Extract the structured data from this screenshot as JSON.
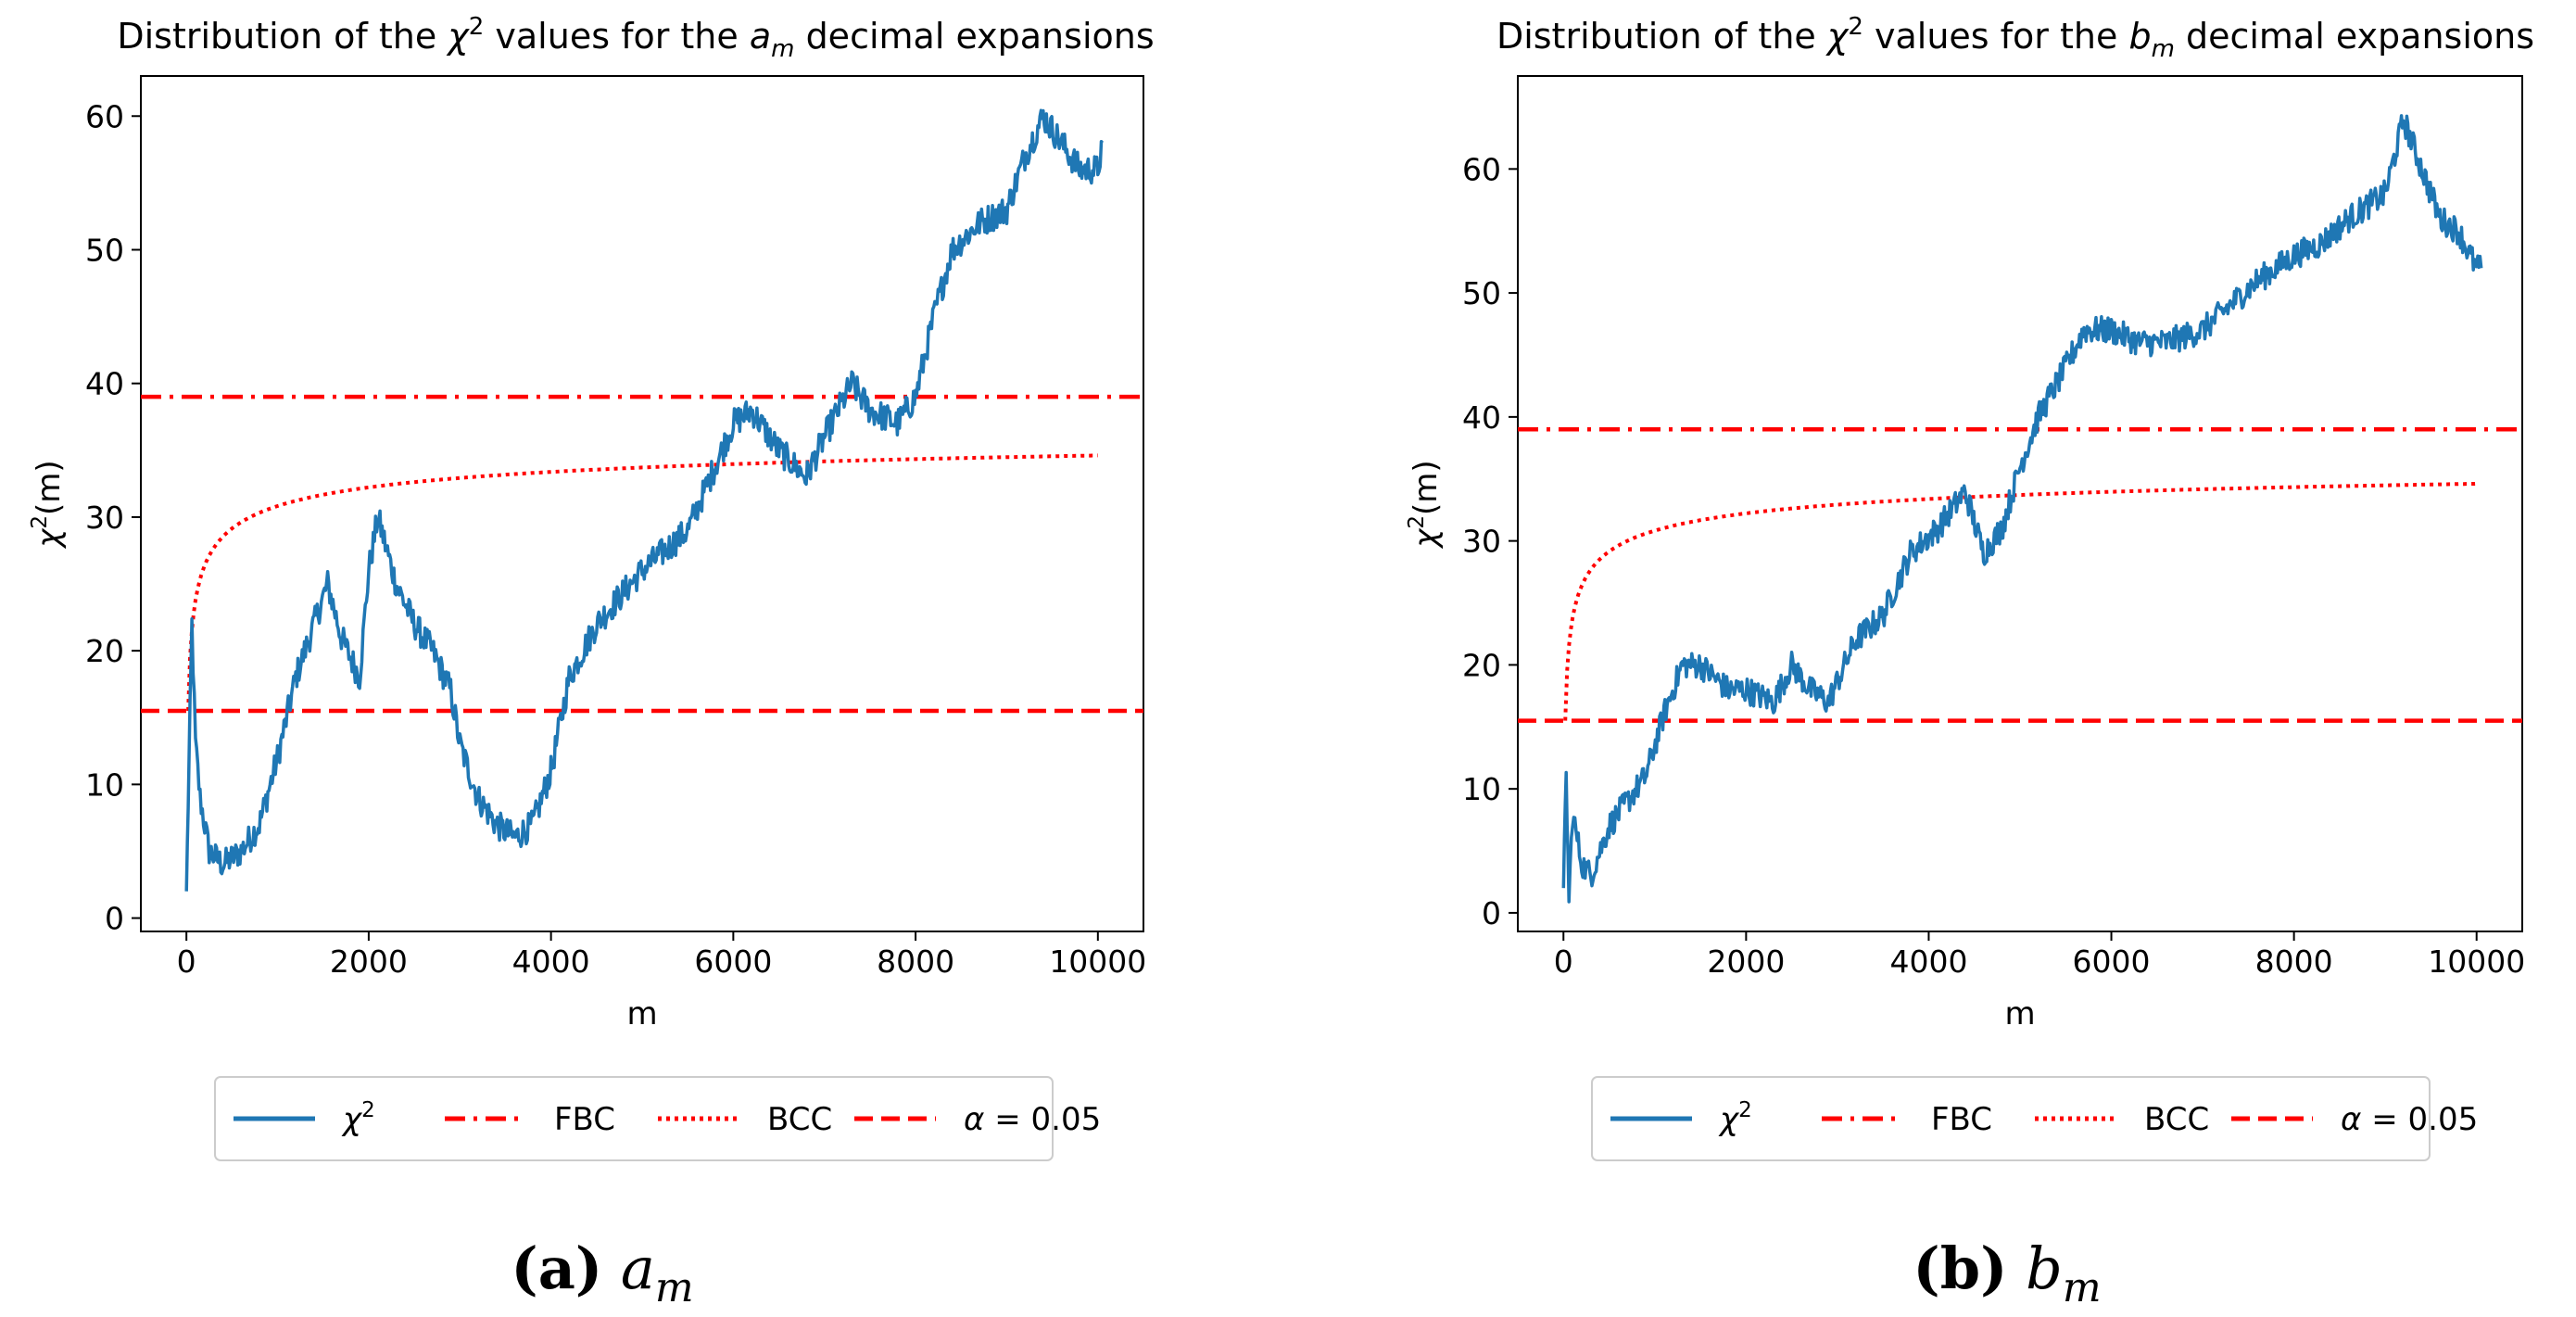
{
  "chart_data": [
    {
      "type": "line",
      "title": "Distribution of the χ² values for the a_m decimal expansions",
      "title_parts": {
        "prefix": "Distribution of the ",
        "chi": "χ",
        "sup": "2",
        "middle": " values for the ",
        "var": "a",
        "sub": "m",
        "suffix": " decimal expansions"
      },
      "xlabel": "m",
      "ylabel": "χ²(m)",
      "ylabel_parts": {
        "chi": "χ",
        "sup": "2",
        "rest": "(m)"
      },
      "xlim": [
        -500,
        10500
      ],
      "ylim": [
        -1,
        63
      ],
      "xticks": [
        0,
        2000,
        4000,
        6000,
        8000,
        10000
      ],
      "yticks": [
        0,
        10,
        20,
        30,
        40,
        50,
        60
      ],
      "series": [
        {
          "name": "χ²",
          "style": "solid",
          "color": "#1f77b4",
          "x": [
            0,
            30,
            60,
            100,
            150,
            250,
            400,
            600,
            800,
            1000,
            1200,
            1400,
            1550,
            1700,
            1900,
            2000,
            2100,
            2300,
            2500,
            2700,
            2900,
            3000,
            3200,
            3400,
            3600,
            3800,
            4000,
            4200,
            4500,
            5000,
            5500,
            6000,
            6200,
            6500,
            6800,
            7000,
            7300,
            7500,
            7800,
            8000,
            8200,
            8400,
            8700,
            9000,
            9200,
            9400,
            9600,
            9800,
            10000,
            10050
          ],
          "y": [
            2,
            12,
            22,
            13,
            9,
            5,
            4,
            5,
            7,
            12,
            18,
            22,
            25,
            21,
            18,
            26,
            30,
            25,
            22,
            20,
            17,
            13,
            9,
            7,
            6,
            7,
            11,
            18,
            22,
            26,
            29,
            37,
            38,
            35,
            33,
            36,
            40,
            38,
            37,
            39,
            45,
            50,
            52,
            53,
            57,
            60,
            58,
            56,
            56,
            58
          ]
        },
        {
          "name": "FBC",
          "style": "dashdot",
          "color": "#ff0000",
          "constant": 39
        },
        {
          "name": "BCC",
          "style": "dotted",
          "color": "#ff0000",
          "formula": "critical value growing from 15.5 toward 39"
        },
        {
          "name": "α = 0.05",
          "style": "dashed",
          "color": "#ff0000",
          "constant": 15.5
        }
      ],
      "legend": [
        "χ²",
        "FBC",
        "BCC",
        "α = 0.05"
      ],
      "legend_position": "below",
      "caption": {
        "label": "(a)",
        "var": "a",
        "sub": "m"
      }
    },
    {
      "type": "line",
      "title": "Distribution of the χ² values for the b_m decimal expansions",
      "title_parts": {
        "prefix": "Distribution of the ",
        "chi": "χ",
        "sup": "2",
        "middle": " values for the ",
        "var": "b",
        "sub": "m",
        "suffix": " decimal expansions"
      },
      "xlabel": "m",
      "ylabel": "χ²(m)",
      "ylabel_parts": {
        "chi": "χ",
        "sup": "2",
        "rest": "(m)"
      },
      "xlim": [
        -500,
        10500
      ],
      "ylim": [
        -1.5,
        67.5
      ],
      "xticks": [
        0,
        2000,
        4000,
        6000,
        8000,
        10000
      ],
      "yticks": [
        0,
        10,
        20,
        30,
        40,
        50,
        60
      ],
      "series": [
        {
          "name": "χ²",
          "style": "solid",
          "color": "#1f77b4",
          "x": [
            0,
            30,
            60,
            100,
            200,
            300,
            500,
            700,
            900,
            1100,
            1300,
            1500,
            1800,
            2000,
            2300,
            2500,
            2700,
            2900,
            3200,
            3500,
            3800,
            4100,
            4400,
            4600,
            4800,
            5000,
            5200,
            5500,
            5700,
            6000,
            6300,
            6600,
            7000,
            7300,
            7600,
            8000,
            8300,
            8600,
            9000,
            9200,
            9400,
            9600,
            9800,
            10000,
            10050
          ],
          "y": [
            2,
            11,
            1,
            8,
            4,
            3,
            7,
            9,
            11,
            16,
            20,
            20,
            18,
            18,
            17,
            20,
            18,
            17,
            22,
            24,
            29,
            31,
            34,
            29,
            31,
            36,
            40,
            44,
            47,
            47,
            46,
            46,
            47,
            49,
            51,
            53,
            54,
            56,
            58,
            64,
            60,
            56,
            55,
            52,
            52
          ]
        },
        {
          "name": "FBC",
          "style": "dashdot",
          "color": "#ff0000",
          "constant": 39
        },
        {
          "name": "BCC",
          "style": "dotted",
          "color": "#ff0000",
          "formula": "critical value growing from 15.5 toward 39"
        },
        {
          "name": "α = 0.05",
          "style": "dashed",
          "color": "#ff0000",
          "constant": 15.5
        }
      ],
      "legend": [
        "χ²",
        "FBC",
        "BCC",
        "α = 0.05"
      ],
      "legend_position": "below",
      "caption": {
        "label": "(b)",
        "var": "b",
        "sub": "m"
      }
    }
  ]
}
